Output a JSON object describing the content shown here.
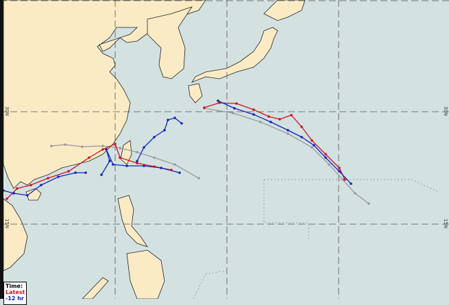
{
  "map": {
    "land_color": "#fbebc5",
    "ocean_color": "#d3e1e1",
    "grid_labels_left": [
      "30N",
      "15N"
    ],
    "grid_labels_right": [
      "30N",
      "15N"
    ]
  },
  "legend": {
    "title": "Time:",
    "items": [
      {
        "label": "Latest",
        "color": "#cc1122"
      },
      {
        "label": "-12 hr",
        "color": "#1122bb"
      }
    ]
  },
  "tracks": {
    "latest_color": "#cc1122",
    "minus12_color": "#1122bb",
    "other_color": "#999999"
  }
}
